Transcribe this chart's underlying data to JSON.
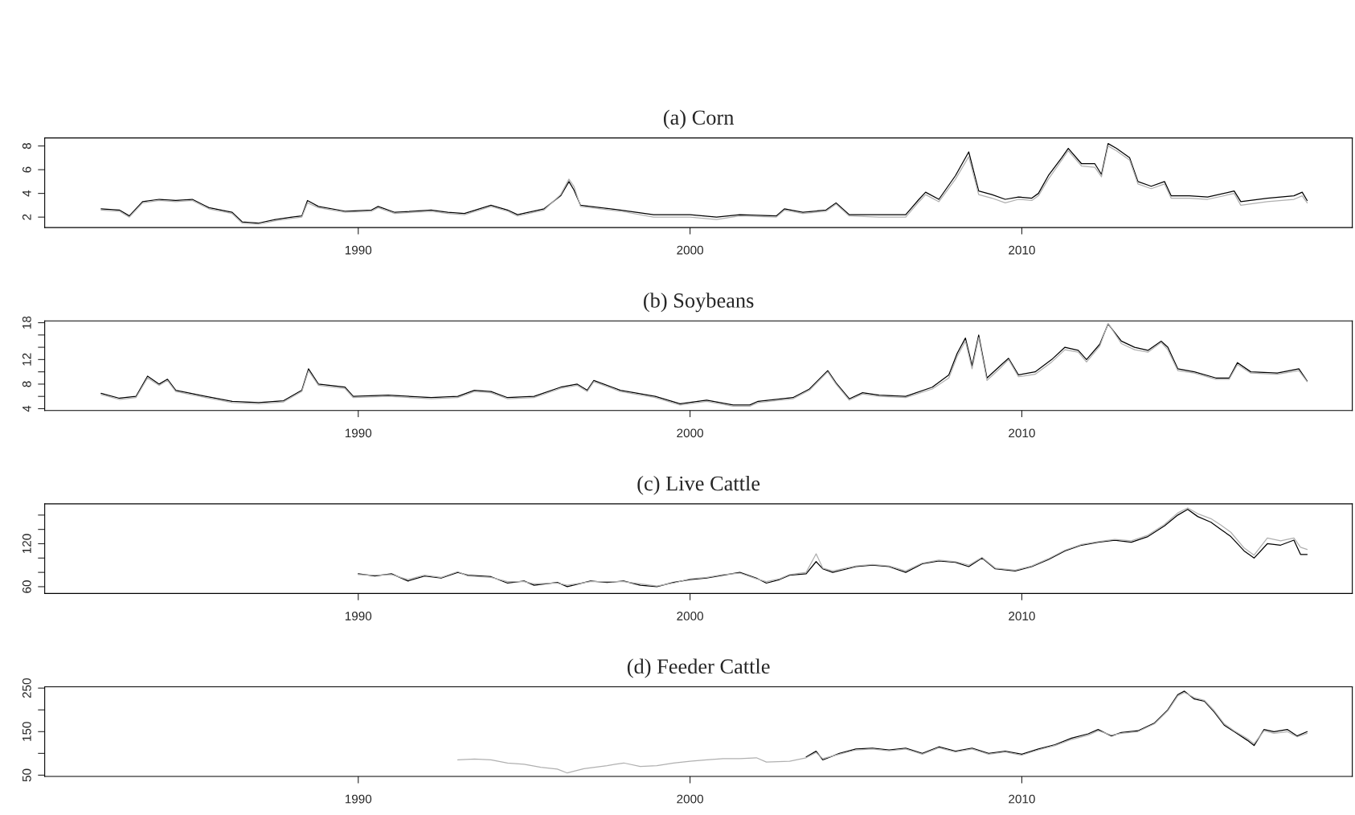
{
  "chart_data": [
    {
      "type": "line",
      "title": "(a) Corn",
      "xlim": [
        1980.55,
        2019.96
      ],
      "xticks": [
        1990,
        2000,
        2010
      ],
      "ylim": [
        1.12,
        8.68
      ],
      "yticks": [
        2,
        4,
        6,
        8
      ],
      "grid": false,
      "legend": false,
      "line_style": "solid",
      "marker": "none",
      "series": [
        {
          "color": "#000000",
          "x": [
            1982.25,
            1982.8,
            1983.1,
            1983.5,
            1984.0,
            1984.5,
            1985.0,
            1985.5,
            1986.2,
            1986.5,
            1987.0,
            1987.5,
            1988.0,
            1988.3,
            1988.47,
            1988.8,
            1989.6,
            1990.4,
            1990.6,
            1991.1,
            1992.2,
            1992.7,
            1993.2,
            1994.0,
            1994.5,
            1994.8,
            1995.6,
            1996.1,
            1996.35,
            1996.5,
            1996.7,
            1997.9,
            1998.9,
            2000.0,
            2000.8,
            2001.5,
            2002.6,
            2002.85,
            2003.4,
            2004.1,
            2004.4,
            2004.8,
            2005.7,
            2006.5,
            2006.9,
            2007.1,
            2007.5,
            2008.0,
            2008.4,
            2008.7,
            2009.1,
            2009.5,
            2009.9,
            2010.3,
            2010.5,
            2010.8,
            2011.2,
            2011.4,
            2011.8,
            2012.2,
            2012.4,
            2012.6,
            2012.85,
            2013.25,
            2013.5,
            2013.9,
            2014.3,
            2014.5,
            2015.05,
            2015.6,
            2016.4,
            2016.6,
            2017.4,
            2018.2,
            2018.45,
            2018.6
          ],
          "values": [
            2.7,
            2.6,
            2.1,
            3.3,
            3.5,
            3.4,
            3.5,
            2.8,
            2.4,
            1.6,
            1.5,
            1.8,
            2.0,
            2.1,
            3.4,
            2.9,
            2.5,
            2.6,
            2.9,
            2.4,
            2.6,
            2.4,
            2.3,
            3.0,
            2.6,
            2.2,
            2.7,
            3.8,
            5.0,
            4.3,
            3.0,
            2.6,
            2.2,
            2.2,
            2.0,
            2.2,
            2.1,
            2.7,
            2.4,
            2.6,
            3.2,
            2.2,
            2.2,
            2.2,
            3.5,
            4.1,
            3.5,
            5.5,
            7.5,
            4.2,
            3.9,
            3.5,
            3.7,
            3.6,
            4.0,
            5.5,
            7.0,
            7.8,
            6.5,
            6.5,
            5.6,
            8.2,
            7.8,
            7.0,
            5.0,
            4.6,
            5.0,
            3.8,
            3.8,
            3.7,
            4.2,
            3.3,
            3.6,
            3.8,
            4.1,
            3.4
          ]
        },
        {
          "color": "#b0b0b0",
          "x": [
            1982.25,
            1982.8,
            1983.1,
            1983.5,
            1984.0,
            1984.5,
            1985.0,
            1985.5,
            1986.2,
            1986.5,
            1987.0,
            1987.5,
            1988.0,
            1988.3,
            1988.47,
            1988.8,
            1989.6,
            1990.4,
            1990.6,
            1991.1,
            1992.2,
            1992.7,
            1993.2,
            1994.0,
            1994.5,
            1994.8,
            1995.6,
            1996.1,
            1996.35,
            1996.5,
            1996.7,
            1997.9,
            1998.9,
            2000.0,
            2000.8,
            2001.5,
            2002.6,
            2002.85,
            2003.4,
            2004.1,
            2004.4,
            2004.8,
            2005.7,
            2006.5,
            2006.9,
            2007.1,
            2007.5,
            2008.0,
            2008.4,
            2008.7,
            2009.1,
            2009.5,
            2009.9,
            2010.3,
            2010.5,
            2010.8,
            2011.2,
            2011.4,
            2011.8,
            2012.2,
            2012.4,
            2012.6,
            2012.85,
            2013.25,
            2013.5,
            2013.9,
            2014.3,
            2014.5,
            2015.05,
            2015.6,
            2016.4,
            2016.6,
            2017.4,
            2018.2,
            2018.45,
            2018.6
          ],
          "values": [
            2.6,
            2.5,
            2.0,
            3.2,
            3.4,
            3.3,
            3.4,
            2.7,
            2.3,
            1.5,
            1.4,
            1.7,
            1.9,
            2.0,
            3.2,
            2.8,
            2.4,
            2.5,
            2.8,
            2.3,
            2.5,
            2.3,
            2.2,
            2.9,
            2.5,
            2.1,
            2.6,
            3.9,
            5.2,
            4.6,
            2.9,
            2.5,
            2.0,
            2.0,
            1.8,
            2.1,
            2.0,
            2.6,
            2.3,
            2.5,
            3.1,
            2.1,
            2.0,
            2.0,
            3.3,
            3.9,
            3.3,
            5.2,
            7.1,
            3.9,
            3.6,
            3.2,
            3.5,
            3.4,
            3.8,
            5.2,
            6.8,
            7.6,
            6.3,
            6.2,
            5.4,
            8.0,
            7.6,
            6.8,
            4.8,
            4.4,
            4.8,
            3.6,
            3.6,
            3.5,
            4.0,
            3.0,
            3.3,
            3.5,
            3.8,
            3.2
          ]
        }
      ]
    },
    {
      "type": "line",
      "title": "(b) Soybeans",
      "xlim": [
        1980.55,
        2019.96
      ],
      "xticks": [
        1990,
        2000,
        2010
      ],
      "ylim": [
        3.7,
        18.3
      ],
      "yticks": [
        4,
        {
          "value": 6,
          "label": null
        },
        8,
        {
          "value": 10,
          "label": null
        },
        12,
        {
          "value": 14,
          "label": null
        },
        {
          "value": 16,
          "label": null
        },
        18
      ],
      "grid": false,
      "legend": false,
      "line_style": "solid",
      "marker": "none",
      "series": [
        {
          "color": "#000000",
          "x": [
            1982.25,
            1982.8,
            1983.3,
            1983.65,
            1984.0,
            1984.25,
            1984.5,
            1985.4,
            1986.2,
            1987.0,
            1987.75,
            1988.3,
            1988.5,
            1988.8,
            1989.6,
            1989.85,
            1990.9,
            1992.2,
            1993.0,
            1993.5,
            1994.0,
            1994.5,
            1995.3,
            1996.1,
            1996.6,
            1996.9,
            1997.1,
            1997.9,
            1998.95,
            1999.7,
            2000.5,
            2001.3,
            2001.8,
            2002.05,
            2003.1,
            2003.6,
            2004.15,
            2004.4,
            2004.8,
            2005.2,
            2005.7,
            2006.5,
            2007.3,
            2007.8,
            2008.05,
            2008.3,
            2008.5,
            2008.7,
            2008.95,
            2009.35,
            2009.6,
            2009.9,
            2010.4,
            2010.9,
            2011.3,
            2011.7,
            2011.95,
            2012.35,
            2012.6,
            2013.0,
            2013.4,
            2013.8,
            2014.2,
            2014.4,
            2014.7,
            2015.2,
            2015.85,
            2016.25,
            2016.5,
            2016.9,
            2017.7,
            2018.35,
            2018.6
          ],
          "values": [
            6.5,
            5.7,
            6.0,
            9.3,
            8.0,
            8.8,
            7.0,
            6.0,
            5.2,
            5.0,
            5.3,
            7.0,
            10.5,
            8.0,
            7.5,
            6.0,
            6.2,
            5.8,
            6.0,
            7.0,
            6.8,
            5.8,
            6.0,
            7.5,
            8.0,
            7.0,
            8.6,
            7.0,
            6.0,
            4.8,
            5.4,
            4.6,
            4.6,
            5.2,
            5.8,
            7.2,
            10.2,
            8.2,
            5.6,
            6.6,
            6.2,
            6.0,
            7.5,
            9.5,
            13.0,
            15.5,
            11.0,
            16.0,
            9.0,
            11.0,
            12.2,
            9.5,
            10.0,
            12.0,
            14.0,
            13.5,
            12.0,
            14.5,
            17.8,
            15.0,
            14.0,
            13.5,
            15.0,
            14.0,
            10.5,
            10.0,
            9.0,
            9.0,
            11.5,
            10.0,
            9.8,
            10.5,
            8.5
          ]
        },
        {
          "color": "#b0b0b0",
          "x": [
            1982.25,
            1982.8,
            1983.3,
            1983.65,
            1984.0,
            1984.25,
            1984.5,
            1985.4,
            1986.2,
            1987.0,
            1987.75,
            1988.3,
            1988.5,
            1988.8,
            1989.6,
            1989.85,
            1990.9,
            1992.2,
            1993.0,
            1993.5,
            1994.0,
            1994.5,
            1995.3,
            1996.1,
            1996.6,
            1996.9,
            1997.1,
            1997.9,
            1998.95,
            1999.7,
            2000.5,
            2001.3,
            2001.8,
            2002.05,
            2003.1,
            2003.6,
            2004.15,
            2004.4,
            2004.8,
            2005.2,
            2005.7,
            2006.5,
            2007.3,
            2007.8,
            2008.05,
            2008.3,
            2008.5,
            2008.7,
            2008.95,
            2009.35,
            2009.6,
            2009.9,
            2010.4,
            2010.9,
            2011.3,
            2011.7,
            2011.95,
            2012.35,
            2012.6,
            2013.0,
            2013.4,
            2013.8,
            2014.2,
            2014.4,
            2014.7,
            2015.2,
            2015.85,
            2016.25,
            2016.5,
            2016.9,
            2017.7,
            2018.35,
            2018.6
          ],
          "values": [
            6.3,
            5.5,
            5.8,
            9.0,
            7.8,
            8.6,
            6.8,
            5.8,
            5.0,
            4.8,
            5.1,
            6.8,
            10.2,
            7.8,
            7.3,
            5.8,
            6.0,
            5.6,
            5.8,
            6.8,
            6.6,
            5.6,
            5.8,
            7.3,
            7.8,
            6.8,
            8.4,
            6.8,
            5.8,
            4.6,
            5.2,
            4.4,
            4.4,
            5.0,
            5.6,
            7.0,
            10.0,
            8.0,
            5.4,
            6.4,
            6.0,
            5.8,
            7.2,
            9.0,
            12.5,
            15.0,
            10.5,
            15.6,
            8.6,
            10.6,
            12.0,
            9.2,
            9.6,
            11.6,
            13.6,
            13.2,
            11.6,
            14.2,
            17.9,
            14.6,
            13.6,
            13.2,
            14.8,
            13.6,
            10.2,
            9.8,
            8.8,
            8.8,
            11.2,
            9.8,
            9.6,
            10.2,
            8.4
          ]
        }
      ]
    },
    {
      "type": "line",
      "title": "(c) Live Cattle",
      "xlim": [
        1980.55,
        2019.96
      ],
      "xticks": [
        1990,
        2000,
        2010
      ],
      "ylim": [
        50.5,
        175.7
      ],
      "yticks": [
        60,
        {
          "value": 80,
          "label": null
        },
        {
          "value": 100,
          "label": null
        },
        120,
        {
          "value": 140,
          "label": null
        },
        {
          "value": 160,
          "label": null
        }
      ],
      "grid": false,
      "legend": false,
      "line_style": "solid",
      "marker": "none",
      "series": [
        {
          "color": "#000000",
          "x": [
            1990,
            1990.5,
            1991,
            1991.5,
            1992,
            1992.5,
            1993,
            1993.3,
            1994,
            1994.5,
            1995,
            1995.3,
            1996,
            1996.3,
            1997,
            1997.5,
            1998,
            1998.5,
            1999,
            1999.5,
            2000,
            2000.5,
            2001,
            2001.5,
            2002,
            2002.3,
            2002.7,
            2003,
            2003.5,
            2003.8,
            2004,
            2004.3,
            2005,
            2005.5,
            2006,
            2006.5,
            2007,
            2007.5,
            2008,
            2008.4,
            2008.8,
            2009.2,
            2009.8,
            2010.3,
            2010.8,
            2011.3,
            2011.8,
            2012.3,
            2012.8,
            2013.3,
            2013.8,
            2014.3,
            2014.7,
            2015.0,
            2015.3,
            2015.7,
            2016.0,
            2016.3,
            2016.7,
            2017.0,
            2017.4,
            2017.8,
            2018.2,
            2018.4,
            2018.6
          ],
          "values": [
            78,
            75,
            78,
            68,
            75,
            72,
            80,
            76,
            74,
            65,
            68,
            62,
            66,
            60,
            68,
            66,
            68,
            62,
            60,
            66,
            70,
            72,
            76,
            80,
            72,
            65,
            70,
            76,
            78,
            95,
            85,
            80,
            88,
            90,
            88,
            80,
            92,
            96,
            94,
            88,
            100,
            85,
            82,
            88,
            98,
            110,
            118,
            122,
            125,
            122,
            130,
            145,
            160,
            168,
            158,
            150,
            140,
            130,
            110,
            100,
            120,
            118,
            125,
            105,
            105
          ]
        },
        {
          "color": "#b0b0b0",
          "x": [
            1990,
            1990.5,
            1991,
            1991.5,
            1992,
            1992.5,
            1993,
            1993.3,
            1994,
            1994.5,
            1995,
            1995.3,
            1996,
            1996.3,
            1997,
            1997.5,
            1998,
            1998.5,
            1999,
            1999.5,
            2000,
            2000.5,
            2001,
            2001.5,
            2002,
            2002.3,
            2002.7,
            2003,
            2003.5,
            2003.8,
            2004,
            2004.3,
            2005,
            2005.5,
            2006,
            2006.5,
            2007,
            2007.5,
            2008,
            2008.4,
            2008.8,
            2009.2,
            2009.8,
            2010.3,
            2010.8,
            2011.3,
            2011.8,
            2012.3,
            2012.8,
            2013.3,
            2013.8,
            2014.3,
            2014.7,
            2015.0,
            2015.3,
            2015.7,
            2016.0,
            2016.3,
            2016.7,
            2017.0,
            2017.4,
            2017.8,
            2018.2,
            2018.4,
            2018.6
          ],
          "values": [
            77,
            76,
            77,
            70,
            76,
            73,
            81,
            75,
            73,
            67,
            67,
            64,
            65,
            62,
            67,
            67,
            67,
            64,
            61,
            65,
            71,
            73,
            77,
            79,
            71,
            67,
            71,
            77,
            80,
            106,
            86,
            82,
            89,
            91,
            89,
            82,
            93,
            97,
            95,
            90,
            101,
            86,
            83,
            89,
            99,
            111,
            119,
            123,
            126,
            124,
            132,
            147,
            163,
            170,
            162,
            155,
            146,
            136,
            114,
            104,
            128,
            124,
            128,
            115,
            112
          ]
        }
      ]
    },
    {
      "type": "line",
      "title": "(d) Feeder Cattle",
      "xlim": [
        1980.55,
        2019.96
      ],
      "xticks": [
        1990,
        2000,
        2010
      ],
      "ylim": [
        47,
        253
      ],
      "yticks": [
        50,
        {
          "value": 100,
          "label": null
        },
        150,
        {
          "value": 200,
          "label": null
        },
        250
      ],
      "grid": false,
      "legend": false,
      "line_style": "solid",
      "marker": "none",
      "series": [
        {
          "color": "#000000",
          "x": [
            2003.5,
            2003.8,
            2004,
            2004.5,
            2005,
            2005.5,
            2006,
            2006.5,
            2007,
            2007.5,
            2008,
            2008.5,
            2009,
            2009.5,
            2010,
            2010.5,
            2011,
            2011.5,
            2012,
            2012.3,
            2012.7,
            2013,
            2013.5,
            2014,
            2014.4,
            2014.7,
            2014.9,
            2015.2,
            2015.5,
            2015.8,
            2016.1,
            2016.4,
            2016.8,
            2017.0,
            2017.3,
            2017.6,
            2018.0,
            2018.3,
            2018.6
          ],
          "values": [
            92,
            105,
            85,
            100,
            110,
            112,
            108,
            112,
            100,
            115,
            105,
            112,
            100,
            105,
            98,
            110,
            120,
            135,
            145,
            155,
            140,
            148,
            152,
            170,
            200,
            235,
            243,
            225,
            220,
            195,
            165,
            150,
            130,
            118,
            155,
            150,
            155,
            140,
            150
          ]
        },
        {
          "color": "#b0b0b0",
          "x": [
            1993,
            1993.5,
            1994,
            1994.5,
            1995,
            1995.5,
            1996,
            1996.3,
            1996.8,
            1997.5,
            1998,
            1998.5,
            1999,
            1999.5,
            2000,
            2000.5,
            2001,
            2001.5,
            2002,
            2002.3,
            2003,
            2003.5,
            2003.8,
            2004,
            2004.5,
            2005,
            2005.5,
            2006,
            2006.5,
            2007,
            2007.5,
            2008,
            2008.5,
            2009,
            2009.5,
            2010,
            2010.5,
            2011,
            2011.5,
            2012,
            2012.3,
            2012.7,
            2013,
            2013.5,
            2014,
            2014.4,
            2014.7,
            2014.9,
            2015.2,
            2015.5,
            2015.8,
            2016.1,
            2016.4,
            2016.8,
            2017.0,
            2017.3,
            2017.6,
            2018.0,
            2018.3,
            2018.6
          ],
          "values": [
            85,
            87,
            85,
            78,
            75,
            68,
            64,
            55,
            65,
            72,
            78,
            70,
            72,
            78,
            82,
            85,
            88,
            88,
            90,
            80,
            82,
            90,
            102,
            88,
            98,
            108,
            110,
            106,
            110,
            98,
            113,
            103,
            110,
            98,
            103,
            96,
            108,
            118,
            132,
            142,
            152,
            142,
            146,
            150,
            168,
            198,
            232,
            240,
            228,
            222,
            198,
            168,
            152,
            134,
            122,
            152,
            146,
            150,
            138,
            146
          ]
        }
      ]
    }
  ]
}
